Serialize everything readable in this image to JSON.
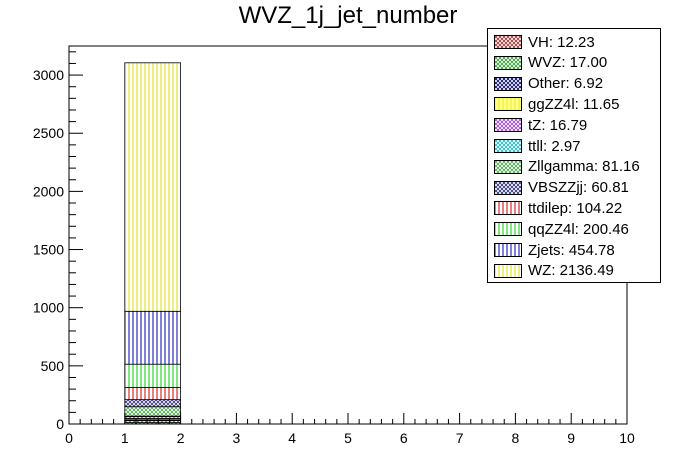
{
  "chart_data": {
    "type": "bar",
    "title": "WVZ_1j_jet_number",
    "xlabel": "",
    "ylabel": "",
    "xlim": [
      0,
      10
    ],
    "ylim": [
      0,
      3250
    ],
    "x_ticks": [
      "0",
      "1",
      "2",
      "3",
      "4",
      "5",
      "6",
      "7",
      "8",
      "9",
      "10"
    ],
    "y_ticks": [
      "0",
      "500",
      "1000",
      "1500",
      "2000",
      "2500",
      "3000"
    ],
    "bin": [
      1,
      2
    ],
    "stacked": true,
    "grid": false,
    "legend_position": "top-right",
    "series": [
      {
        "name": "VH: 12.23",
        "value": 12.23,
        "color": "#a52a2a",
        "pattern": "crosshatch"
      },
      {
        "name": "WVZ: 17.00",
        "value": 17.0,
        "color": "#2e9a2e",
        "pattern": "crosshatch"
      },
      {
        "name": "Other: 6.92",
        "value": 6.92,
        "color": "#00006e",
        "pattern": "crosshatch"
      },
      {
        "name": "ggZZ4l: 11.65",
        "value": 11.65,
        "color": "#dddd00",
        "pattern": "solid-light"
      },
      {
        "name": "tZ: 16.79",
        "value": 16.79,
        "color": "#9b3fd0",
        "pattern": "crosshatch"
      },
      {
        "name": "ttll: 2.97",
        "value": 2.97,
        "color": "#18b8c8",
        "pattern": "crosshatch"
      },
      {
        "name": "Zllgamma: 81.16",
        "value": 81.16,
        "color": "#4aa84a",
        "pattern": "crosshatch"
      },
      {
        "name": "VBSZZjj: 60.81",
        "value": 60.81,
        "color": "#2a2a7a",
        "pattern": "crosshatch"
      },
      {
        "name": "ttdilep: 104.22",
        "value": 104.22,
        "color": "#cc0000",
        "pattern": "vertical"
      },
      {
        "name": "qqZZ4l: 200.46",
        "value": 200.46,
        "color": "#00cc00",
        "pattern": "vertical"
      },
      {
        "name": "Zjets: 454.78",
        "value": 454.78,
        "color": "#0000bb",
        "pattern": "vertical"
      },
      {
        "name": "WZ: 2136.49",
        "value": 2136.49,
        "color": "#dddd00",
        "pattern": "vertical"
      }
    ]
  }
}
